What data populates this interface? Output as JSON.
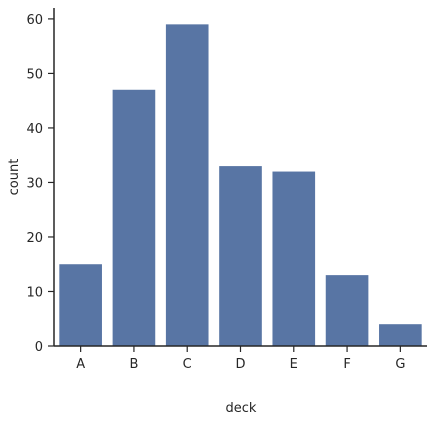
{
  "chart_data": {
    "type": "bar",
    "x_label": "deck",
    "y_label": "count",
    "categories": [
      "A",
      "B",
      "C",
      "D",
      "E",
      "F",
      "G"
    ],
    "values": [
      15,
      47,
      59,
      33,
      32,
      13,
      4
    ],
    "color": "#5875a4",
    "ylim": [
      0,
      62
    ],
    "yticks": [
      0,
      10,
      20,
      30,
      40,
      50,
      60
    ],
    "grid": false
  }
}
